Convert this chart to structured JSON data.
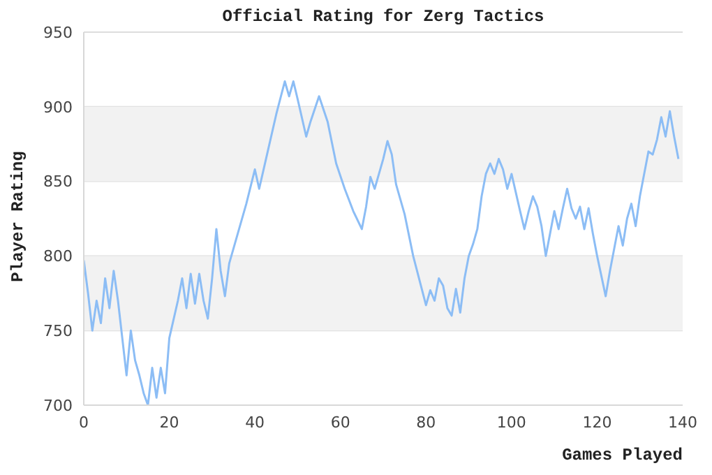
{
  "chart_data": {
    "type": "line",
    "title": "Official Rating for Zerg Tactics",
    "xlabel": "Games Played",
    "ylabel": "Player Rating",
    "x": [
      0,
      1,
      2,
      3,
      4,
      5,
      6,
      7,
      8,
      9,
      10,
      11,
      12,
      13,
      14,
      15,
      16,
      17,
      18,
      19,
      20,
      22,
      23,
      24,
      25,
      26,
      27,
      28,
      29,
      30,
      31,
      32,
      33,
      34,
      36,
      38,
      40,
      41,
      43,
      45,
      47,
      48,
      49,
      50,
      52,
      53,
      55,
      57,
      59,
      61,
      63,
      65,
      66,
      67,
      68,
      70,
      71,
      72,
      73,
      75,
      77,
      79,
      80,
      81,
      82,
      83,
      84,
      85,
      86,
      87,
      88,
      89,
      90,
      91,
      92,
      93,
      94,
      95,
      96,
      97,
      98,
      99,
      100,
      102,
      103,
      104,
      105,
      106,
      107,
      108,
      109,
      110,
      111,
      112,
      113,
      114,
      115,
      116,
      117,
      118,
      119,
      120,
      122,
      123,
      124,
      125,
      126,
      127,
      128,
      129,
      130,
      131,
      132,
      133,
      134,
      135,
      136,
      137,
      138,
      139
    ],
    "series": [
      {
        "color": "#8cbdf5",
        "values": [
          797,
          775,
          750,
          770,
          755,
          785,
          765,
          790,
          770,
          745,
          720,
          750,
          730,
          720,
          708,
          700,
          725,
          705,
          725,
          708,
          745,
          770,
          785,
          765,
          788,
          768,
          788,
          770,
          758,
          785,
          818,
          790,
          773,
          795,
          815,
          835,
          858,
          845,
          870,
          895,
          917,
          907,
          917,
          905,
          880,
          890,
          907,
          890,
          862,
          845,
          830,
          818,
          833,
          853,
          845,
          865,
          877,
          868,
          848,
          828,
          800,
          778,
          767,
          777,
          770,
          785,
          780,
          765,
          760,
          778,
          762,
          785,
          800,
          808,
          818,
          840,
          855,
          862,
          855,
          865,
          858,
          845,
          855,
          830,
          818,
          830,
          840,
          833,
          820,
          800,
          815,
          830,
          818,
          832,
          845,
          832,
          825,
          833,
          818,
          832,
          815,
          800,
          773,
          790,
          805,
          820,
          807,
          825,
          835,
          820,
          840,
          855,
          870,
          868,
          878,
          893,
          880,
          897,
          880,
          865
        ]
      }
    ],
    "xlim": [
      0,
      140
    ],
    "xticks": [
      0,
      20,
      40,
      60,
      80,
      100,
      120,
      140
    ],
    "ylim": [
      700,
      950
    ],
    "yticks": [
      700,
      750,
      800,
      850,
      900,
      950
    ],
    "grid": "y",
    "legend": false,
    "marker": "none",
    "line_style": "solid",
    "bands": [
      {
        "axis": "y",
        "from": 750,
        "to": 800,
        "color": "#f2f2f2"
      },
      {
        "axis": "y",
        "from": 850,
        "to": 900,
        "color": "#f2f2f2"
      }
    ]
  }
}
